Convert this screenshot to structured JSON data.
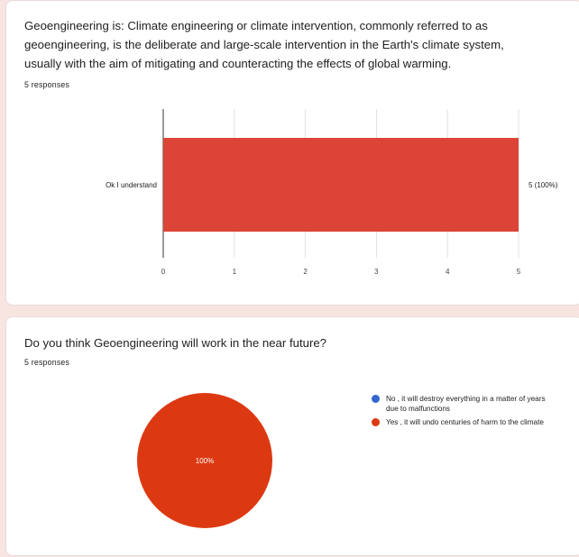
{
  "card1": {
    "question": "Geoengineering is: Climate engineering or climate intervention, commonly referred to as geoengineering, is the deliberate and large-scale intervention in the Earth's climate system, usually with the aim of mitigating and counteracting the effects of global warming.",
    "responses": "5 responses"
  },
  "card2": {
    "question": "Do you think Geoengineering will work in the near future?",
    "responses": "5 responses"
  },
  "chart_data": [
    {
      "type": "bar",
      "orientation": "horizontal",
      "categories": [
        "Ok I understand"
      ],
      "values": [
        5
      ],
      "data_labels": [
        "5 (100%)"
      ],
      "xlim": [
        0,
        5
      ],
      "xticks": [
        0,
        1,
        2,
        3,
        4,
        5
      ],
      "color": "#dc4437",
      "grid": true
    },
    {
      "type": "pie",
      "labels": [
        "No , it will destroy everything in a matter of years due to malfunctions",
        "Yes , it will undo centuries of harm to the climate"
      ],
      "values": [
        0,
        5
      ],
      "colors": [
        "#3366cc",
        "#dc3912"
      ],
      "slice_label": "100%",
      "legend_position": "right"
    }
  ]
}
